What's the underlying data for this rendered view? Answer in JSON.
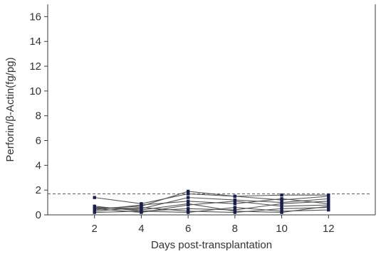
{
  "chart_data": {
    "type": "line",
    "xlabel": "Days post-transplantation",
    "ylabel": "Perforin/β-Actin(fg/pg)",
    "x": [
      2,
      4,
      6,
      8,
      10,
      12
    ],
    "xlim": [
      0,
      14
    ],
    "ylim": [
      0,
      17
    ],
    "xticks": [
      2,
      4,
      6,
      8,
      10,
      12
    ],
    "yticks": [
      0,
      2,
      4,
      6,
      8,
      10,
      12,
      14,
      16
    ],
    "grid": false,
    "reference_line": {
      "y": 1.7,
      "style": "dashed"
    },
    "series": [
      {
        "values": [
          0.5,
          0.7,
          1.9,
          1.5,
          1.6,
          1.6
        ]
      },
      {
        "values": [
          1.4,
          0.9,
          1.7,
          1.5,
          1.2,
          1.5
        ]
      },
      {
        "values": [
          0.6,
          0.5,
          1.4,
          1.2,
          1.0,
          1.3
        ]
      },
      {
        "values": [
          0.4,
          0.8,
          1.1,
          0.9,
          1.3,
          0.9
        ]
      },
      {
        "values": [
          0.5,
          0.2,
          0.8,
          1.1,
          0.7,
          0.8
        ]
      },
      {
        "values": [
          0.7,
          0.3,
          0.5,
          0.4,
          0.9,
          1.1
        ]
      },
      {
        "values": [
          0.3,
          0.6,
          0.3,
          0.2,
          0.5,
          0.6
        ]
      },
      {
        "values": [
          0.2,
          0.3,
          0.2,
          0.6,
          0.3,
          0.4
        ]
      },
      {
        "values": [
          0.6,
          0.4,
          0.9,
          0.3,
          0.2,
          0.7
        ]
      }
    ]
  }
}
